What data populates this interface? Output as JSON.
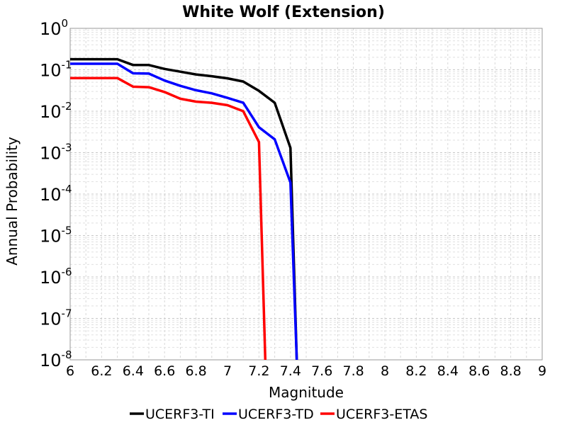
{
  "chart_data": {
    "type": "line",
    "title": "White Wolf (Extension)",
    "xlabel": "Magnitude",
    "ylabel": "Annual Probability",
    "xlim": [
      6,
      9
    ],
    "ylim": [
      1e-08,
      1
    ],
    "yscale": "log",
    "grid": true,
    "legend_position": "bottom",
    "x_ticks": [
      "6",
      "6.2",
      "6.4",
      "6.6",
      "6.8",
      "7",
      "7.2",
      "7.4",
      "7.6",
      "7.8",
      "8",
      "8.2",
      "8.4",
      "8.6",
      "8.8",
      "9"
    ],
    "y_ticks": [
      {
        "base": "10",
        "exp": "-8"
      },
      {
        "base": "10",
        "exp": "-7"
      },
      {
        "base": "10",
        "exp": "-6"
      },
      {
        "base": "10",
        "exp": "-5"
      },
      {
        "base": "10",
        "exp": "-4"
      },
      {
        "base": "10",
        "exp": "-3"
      },
      {
        "base": "10",
        "exp": "-2"
      },
      {
        "base": "10",
        "exp": "-1"
      },
      {
        "base": "10",
        "exp": "0"
      }
    ],
    "series": [
      {
        "name": "UCERF3-TI",
        "color": "#000000",
        "x": [
          6.0,
          6.1,
          6.2,
          6.3,
          6.4,
          6.5,
          6.6,
          6.7,
          6.8,
          6.9,
          7.0,
          7.1,
          7.2,
          7.3,
          7.4,
          7.44
        ],
        "y": [
          0.18,
          0.18,
          0.18,
          0.18,
          0.13,
          0.13,
          0.105,
          0.09,
          0.077,
          0.07,
          0.062,
          0.052,
          0.031,
          0.016,
          0.0013,
          1e-08
        ]
      },
      {
        "name": "UCERF3-TD",
        "color": "#0000ff",
        "x": [
          6.0,
          6.1,
          6.2,
          6.3,
          6.4,
          6.5,
          6.6,
          6.7,
          6.8,
          6.9,
          7.0,
          7.1,
          7.2,
          7.3,
          7.4,
          7.44
        ],
        "y": [
          0.14,
          0.14,
          0.14,
          0.14,
          0.082,
          0.081,
          0.055,
          0.041,
          0.032,
          0.027,
          0.021,
          0.016,
          0.0041,
          0.0021,
          0.00019,
          1e-08
        ]
      },
      {
        "name": "UCERF3-ETAS",
        "color": "#ff0000",
        "x": [
          6.0,
          6.1,
          6.2,
          6.3,
          6.4,
          6.5,
          6.6,
          6.7,
          6.8,
          6.9,
          7.0,
          7.1,
          7.2,
          7.24
        ],
        "y": [
          0.063,
          0.063,
          0.063,
          0.063,
          0.039,
          0.038,
          0.029,
          0.02,
          0.017,
          0.016,
          0.014,
          0.01,
          0.0018,
          1e-08
        ]
      }
    ]
  }
}
